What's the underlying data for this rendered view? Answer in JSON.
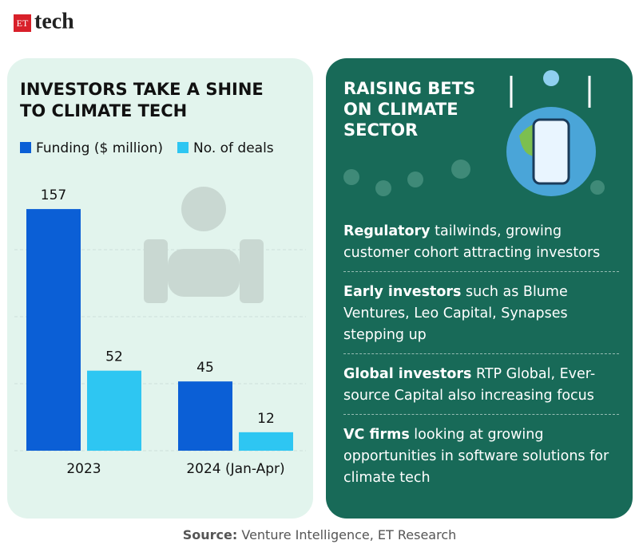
{
  "header": {
    "logo_et": "ET",
    "logo_tech": "tech"
  },
  "chart_data": {
    "type": "bar",
    "title": "INVESTORS TAKE A SHINE TO CLIMATE TECH",
    "categories": [
      "2023",
      "2024 (Jan-Apr)"
    ],
    "series": [
      {
        "name": "Funding ($ million)",
        "color": "#0b5fd6",
        "values": [
          157,
          45
        ]
      },
      {
        "name": "No. of deals",
        "color": "#2ec6f2",
        "values": [
          52,
          12
        ]
      }
    ],
    "ylim": [
      0,
      170
    ]
  },
  "panel": {
    "title": "RAISING BETS ON CLIMATE SECTOR",
    "items": [
      {
        "bold": "Regulatory",
        "text": " tailwinds, growing customer cohort attracting investors"
      },
      {
        "bold": "Early investors",
        "text": " such as Blume Ventures, Leo Capital, Synapses stepping up"
      },
      {
        "bold": "Global investors",
        "text": " RTP Global, Ever-source Capital also increasing focus"
      },
      {
        "bold": "VC firms",
        "text": " looking at growing opportunities in software solutions for climate tech"
      }
    ]
  },
  "source": {
    "label": "Source:",
    "text": " Venture Intelligence, ET Research"
  }
}
